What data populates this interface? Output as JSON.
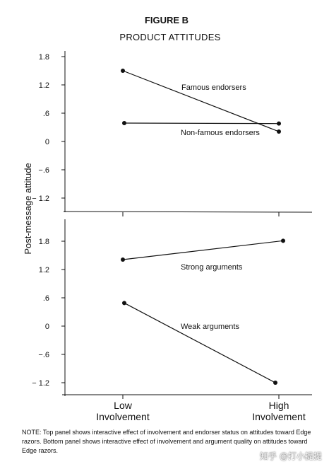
{
  "figure": {
    "label": "FIGURE B",
    "title": "PRODUCT ATTITUDES"
  },
  "note": "NOTE: Top panel shows interactive effect of involvement and endorser status on attitudes toward Edge razors. Bottom panel shows interactive effect of involvement and argument quality on attitudes toward Edge razors.",
  "watermark": "知乎 @打小提提",
  "chart_data": [
    {
      "type": "line",
      "panel": "top",
      "ylabel": "Post-message attitude",
      "categories": [
        "Low Involvement",
        "High Involvement"
      ],
      "yticks": [
        1.8,
        1.2,
        0.6,
        0,
        -0.6,
        -1.2
      ],
      "ytick_labels": [
        "1.8",
        "1.2",
        ".6",
        "0",
        "−.6",
        "− 1.2"
      ],
      "ylim": [
        -1.5,
        1.8
      ],
      "grid": false,
      "series": [
        {
          "name": "Famous endorsers",
          "values": [
            1.5,
            0.21
          ]
        },
        {
          "name": "Non-famous endorsers",
          "values": [
            0.39,
            0.38
          ]
        }
      ]
    },
    {
      "type": "line",
      "panel": "bottom",
      "ylabel": "Post-message attitude",
      "categories": [
        "Low Involvement",
        "High Involvement"
      ],
      "xtick_labels": [
        [
          "Low",
          "Involvement"
        ],
        [
          "High",
          "Involvement"
        ]
      ],
      "yticks": [
        1.8,
        1.2,
        0.6,
        0,
        -0.6,
        -1.2
      ],
      "ytick_labels": [
        "1.8",
        "1.2",
        ".6",
        "0",
        "−.6",
        "− 1.2"
      ],
      "ylim": [
        -1.5,
        2.4
      ],
      "grid": false,
      "series": [
        {
          "name": "Strong arguments",
          "values": [
            1.41,
            1.81
          ]
        },
        {
          "name": "Weak arguments",
          "values": [
            0.49,
            -1.2
          ]
        }
      ]
    }
  ]
}
